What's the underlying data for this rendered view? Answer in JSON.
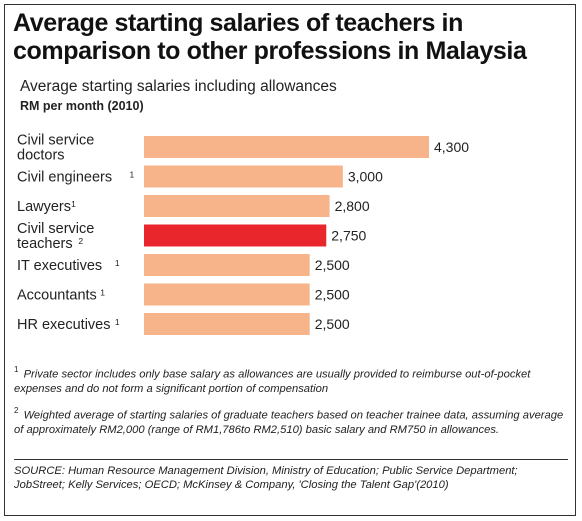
{
  "header": {
    "title": "Average starting salaries of teachers in comparison to other professions in Malaysia",
    "subtitle": "Average starting salaries including allowances",
    "unit": "RM per month (2010)"
  },
  "colors": {
    "bar": "#F7B48A",
    "highlight": "#E8262B"
  },
  "chart_data": {
    "type": "bar",
    "orientation": "horizontal",
    "title": "Average starting salaries of teachers in comparison to other professions in Malaysia",
    "subtitle": "Average starting salaries including allowances",
    "ylabel": "RM per month (2010)",
    "xlim": [
      0,
      4300
    ],
    "grid": false,
    "categories": [
      {
        "lines": [
          "Civil service",
          "doctors"
        ],
        "marker": ""
      },
      {
        "lines": [
          "Civil engineers"
        ],
        "marker": "1"
      },
      {
        "lines": [
          "Lawyers"
        ],
        "marker": "1"
      },
      {
        "lines": [
          "Civil service",
          "teachers"
        ],
        "marker": "2"
      },
      {
        "lines": [
          "IT executives"
        ],
        "marker": "1"
      },
      {
        "lines": [
          "Accountants"
        ],
        "marker": "1"
      },
      {
        "lines": [
          "HR executives"
        ],
        "marker": "1"
      }
    ],
    "values": [
      4300,
      3000,
      2800,
      2750,
      2500,
      2500,
      2500
    ],
    "value_labels": [
      "4,300",
      "3,000",
      "2,800",
      "2,750",
      "2,500",
      "2,500",
      "2,500"
    ],
    "highlight_index": 3
  },
  "footnotes": [
    {
      "marker": "1",
      "text": "Private sector includes only base salary as allowances are usually provided to reimburse out-of-pocket expenses and do not form a significant portion of compensation"
    },
    {
      "marker": "2",
      "text": "Weighted average of starting salaries of graduate teachers based on teacher trainee data, assuming average of approximately RM2,000 (range of RM1,786to RM2,510) basic salary and RM750 in allowances."
    }
  ],
  "source": "SOURCE: Human Resource Management Division, Ministry of Education; Public Service Department; JobStreet; Kelly Services; OECD; McKinsey & Company, 'Closing the Talent Gap'(2010)"
}
